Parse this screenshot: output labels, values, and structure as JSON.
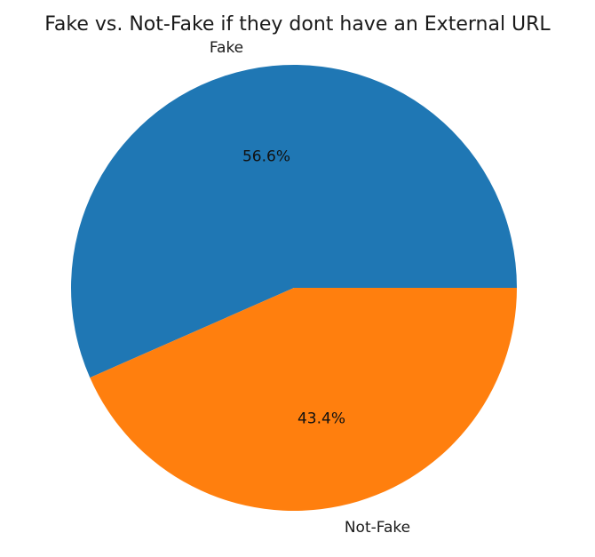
{
  "chart_data": {
    "type": "pie",
    "title": "Fake vs. Not-Fake if they dont have an External URL",
    "slices": [
      {
        "label": "Fake",
        "value": 56.6,
        "percent_label": "56.6%",
        "color": "#1f77b4"
      },
      {
        "label": "Not-Fake",
        "value": 43.4,
        "percent_label": "43.4%",
        "color": "#ff7f0e"
      }
    ],
    "start_angle_deg": 0,
    "direction": "counterclockwise"
  }
}
